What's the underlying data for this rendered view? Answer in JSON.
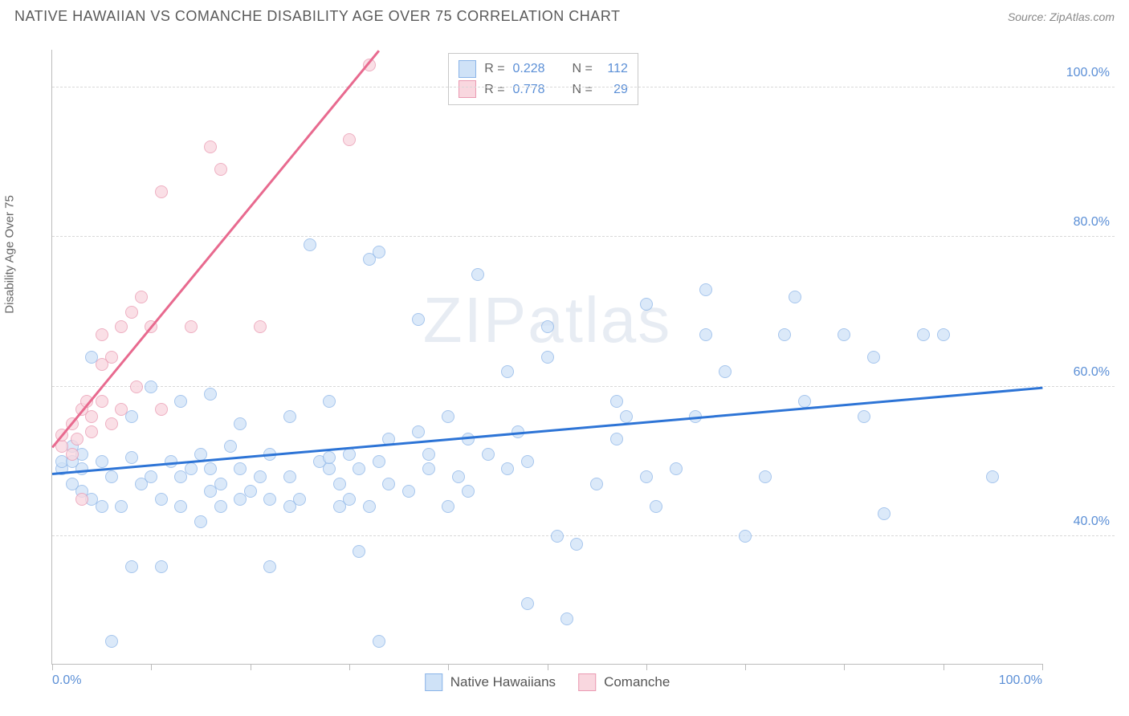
{
  "header": {
    "title": "NATIVE HAWAIIAN VS COMANCHE DISABILITY AGE OVER 75 CORRELATION CHART",
    "source_prefix": "Source: ",
    "source_name": "ZipAtlas.com"
  },
  "watermark": {
    "zip": "ZIP",
    "atlas": "atlas"
  },
  "chart": {
    "type": "scatter",
    "y_axis_label": "Disability Age Over 75",
    "xlim": [
      0,
      100
    ],
    "ylim": [
      23,
      105
    ],
    "x_ticks": [
      0,
      10,
      20,
      30,
      40,
      50,
      60,
      70,
      80,
      90,
      100
    ],
    "x_tick_labels": {
      "0": "0.0%",
      "100": "100.0%"
    },
    "y_gridlines": [
      40,
      60,
      80,
      100
    ],
    "y_tick_labels": {
      "40": "40.0%",
      "60": "60.0%",
      "80": "80.0%",
      "100": "100.0%"
    },
    "grid_color": "#d8d8d8",
    "axis_color": "#bbbbbb",
    "background_color": "#ffffff",
    "marker_radius": 8,
    "marker_stroke_width": 1.2,
    "series": [
      {
        "name": "Native Hawaiians",
        "fill": "#cfe2f7",
        "stroke": "#8ab4e8",
        "fill_opacity": 0.75,
        "r": 0.228,
        "n": 112,
        "trend": {
          "x1": 0,
          "y1": 48.5,
          "x2": 100,
          "y2": 60.0,
          "color": "#2d74d6",
          "width": 2.5
        },
        "points": [
          [
            1,
            49
          ],
          [
            1,
            50
          ],
          [
            2,
            50
          ],
          [
            2,
            47
          ],
          [
            2,
            52
          ],
          [
            3,
            49
          ],
          [
            3,
            51
          ],
          [
            3,
            46
          ],
          [
            4,
            45
          ],
          [
            4,
            64
          ],
          [
            5,
            50
          ],
          [
            5,
            44
          ],
          [
            6,
            48
          ],
          [
            6,
            26
          ],
          [
            7,
            44
          ],
          [
            8,
            50.5
          ],
          [
            8,
            56
          ],
          [
            8,
            36
          ],
          [
            9,
            47
          ],
          [
            10,
            60
          ],
          [
            10,
            48
          ],
          [
            11,
            36
          ],
          [
            11,
            45
          ],
          [
            12,
            50
          ],
          [
            13,
            58
          ],
          [
            13,
            44
          ],
          [
            13,
            48
          ],
          [
            14,
            49
          ],
          [
            15,
            42
          ],
          [
            15,
            51
          ],
          [
            16,
            59
          ],
          [
            16,
            46
          ],
          [
            16,
            49
          ],
          [
            17,
            44
          ],
          [
            17,
            47
          ],
          [
            18,
            52
          ],
          [
            19,
            55
          ],
          [
            19,
            45
          ],
          [
            19,
            49
          ],
          [
            20,
            46
          ],
          [
            21,
            48
          ],
          [
            22,
            45
          ],
          [
            22,
            51
          ],
          [
            22,
            36
          ],
          [
            24,
            44
          ],
          [
            24,
            48
          ],
          [
            24,
            56
          ],
          [
            25,
            45
          ],
          [
            26,
            79
          ],
          [
            27,
            50
          ],
          [
            28,
            49
          ],
          [
            28,
            50.5
          ],
          [
            28,
            58
          ],
          [
            29,
            44
          ],
          [
            29,
            47
          ],
          [
            30,
            45
          ],
          [
            30,
            51
          ],
          [
            31,
            49
          ],
          [
            31,
            38
          ],
          [
            32,
            44
          ],
          [
            32,
            77
          ],
          [
            33,
            50
          ],
          [
            33,
            26
          ],
          [
            33,
            78
          ],
          [
            34,
            47
          ],
          [
            34,
            53
          ],
          [
            36,
            46
          ],
          [
            37,
            54
          ],
          [
            37,
            69
          ],
          [
            38,
            49
          ],
          [
            38,
            51
          ],
          [
            40,
            56
          ],
          [
            40,
            44
          ],
          [
            41,
            48
          ],
          [
            42,
            53
          ],
          [
            42,
            46
          ],
          [
            43,
            75
          ],
          [
            44,
            51
          ],
          [
            46,
            49
          ],
          [
            46,
            62
          ],
          [
            47,
            54
          ],
          [
            48,
            50
          ],
          [
            48,
            31
          ],
          [
            50,
            64
          ],
          [
            50,
            68
          ],
          [
            51,
            40
          ],
          [
            52,
            29
          ],
          [
            53,
            39
          ],
          [
            55,
            47
          ],
          [
            57,
            53
          ],
          [
            57,
            58
          ],
          [
            58,
            56
          ],
          [
            60,
            48
          ],
          [
            60,
            71
          ],
          [
            61,
            44
          ],
          [
            63,
            49
          ],
          [
            65,
            56
          ],
          [
            66,
            67
          ],
          [
            66,
            73
          ],
          [
            68,
            62
          ],
          [
            70,
            40
          ],
          [
            72,
            48
          ],
          [
            74,
            67
          ],
          [
            75,
            72
          ],
          [
            76,
            58
          ],
          [
            80,
            67
          ],
          [
            82,
            56
          ],
          [
            83,
            64
          ],
          [
            84,
            43
          ],
          [
            88,
            67
          ],
          [
            90,
            67
          ],
          [
            95,
            48
          ]
        ]
      },
      {
        "name": "Comanche",
        "fill": "#f9d7df",
        "stroke": "#ea9ab2",
        "fill_opacity": 0.78,
        "r": 0.778,
        "n": 29,
        "trend": {
          "x1": 0,
          "y1": 52,
          "x2": 33,
          "y2": 105,
          "color": "#e86a8f",
          "width": 2.5
        },
        "points": [
          [
            1,
            52
          ],
          [
            1,
            53.5
          ],
          [
            2,
            51
          ],
          [
            2,
            55
          ],
          [
            2.5,
            53
          ],
          [
            3,
            57
          ],
          [
            3,
            45
          ],
          [
            3.5,
            58
          ],
          [
            4,
            56
          ],
          [
            4,
            54
          ],
          [
            5,
            63
          ],
          [
            5,
            58
          ],
          [
            5,
            67
          ],
          [
            6,
            64
          ],
          [
            6,
            55
          ],
          [
            7,
            68
          ],
          [
            7,
            57
          ],
          [
            8,
            70
          ],
          [
            8.5,
            60
          ],
          [
            9,
            72
          ],
          [
            10,
            68
          ],
          [
            11,
            57
          ],
          [
            11,
            86
          ],
          [
            14,
            68
          ],
          [
            16,
            92
          ],
          [
            17,
            89
          ],
          [
            21,
            68
          ],
          [
            30,
            93
          ],
          [
            32,
            103
          ]
        ]
      }
    ],
    "legend_top": {
      "r_label": "R =",
      "n_label": "N ="
    },
    "legend_bottom": [
      {
        "label": "Native Hawaiians",
        "fill": "#cfe2f7",
        "stroke": "#8ab4e8"
      },
      {
        "label": "Comanche",
        "fill": "#f9d7df",
        "stroke": "#ea9ab2"
      }
    ]
  }
}
